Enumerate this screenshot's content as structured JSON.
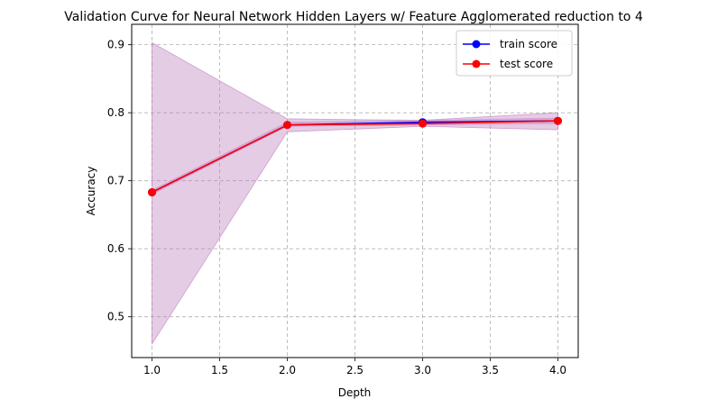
{
  "chart_data": {
    "type": "line",
    "title": "Validation Curve for Neural Network Hidden Layers w/ Feature Agglomerated reduction to 4",
    "xlabel": "Depth",
    "ylabel": "Accuracy",
    "xlim": [
      0.85,
      4.15
    ],
    "ylim": [
      0.44,
      0.93
    ],
    "x": [
      1.0,
      2.0,
      3.0,
      4.0
    ],
    "x_ticks": [
      "1.0",
      "1.5",
      "2.0",
      "2.5",
      "3.0",
      "3.5",
      "4.0"
    ],
    "y_ticks": [
      "0.5",
      "0.6",
      "0.7",
      "0.8",
      "0.9"
    ],
    "grid": true,
    "legend_position": "top-right",
    "series": [
      {
        "name": "train score",
        "color": "#0000ff",
        "values": [
          0.683,
          0.782,
          0.786,
          0.788
        ]
      },
      {
        "name": "test score",
        "color": "#ff0000",
        "values": [
          0.683,
          0.782,
          0.784,
          0.788
        ]
      }
    ],
    "bands": [
      {
        "color": "#d29ecf",
        "opacity": 0.55,
        "lower": [
          0.68,
          0.78,
          0.782,
          0.784
        ],
        "upper": [
          0.686,
          0.786,
          0.789,
          0.792
        ]
      },
      {
        "color": "#bf7fbf",
        "opacity": 0.4,
        "lower": [
          0.46,
          0.772,
          0.78,
          0.775
        ],
        "upper": [
          0.903,
          0.791,
          0.789,
          0.8
        ]
      }
    ]
  }
}
